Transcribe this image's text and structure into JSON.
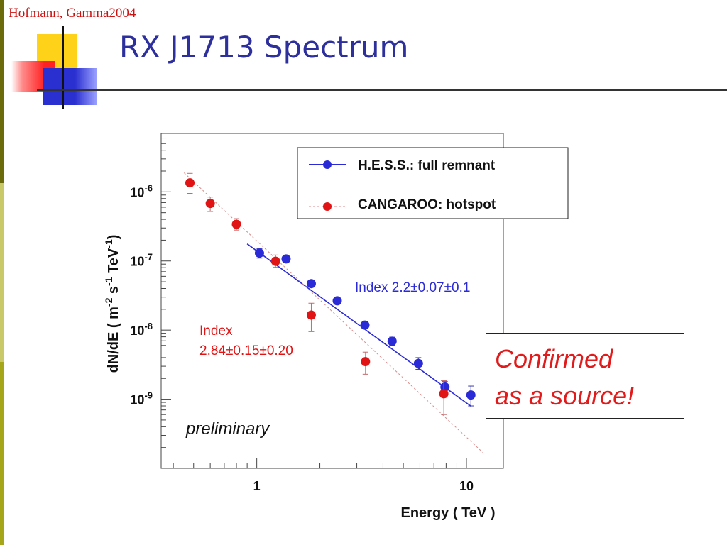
{
  "slide": {
    "credit": "Hofmann, Gamma2004",
    "title": "RX J1713 Spectrum",
    "callout_line1": "Confirmed",
    "callout_line2": "as a source!"
  },
  "chart_data": {
    "type": "scatter",
    "xlabel": "Energy ( TeV )",
    "ylabel_parts": [
      "dN/dE  ( m",
      "-2",
      " s",
      "-1",
      " TeV",
      "-1",
      ")"
    ],
    "xscale": "log",
    "yscale": "log",
    "xlim": [
      0.35,
      15
    ],
    "ylim": [
      1e-10,
      7e-06
    ],
    "x_ticks": [
      {
        "value": 1,
        "label": "1"
      },
      {
        "value": 10,
        "label": "10"
      }
    ],
    "y_ticks": [
      {
        "value": 1e-06,
        "base": "10",
        "exp": "-6"
      },
      {
        "value": 1e-07,
        "base": "10",
        "exp": "-7"
      },
      {
        "value": 1e-08,
        "base": "10",
        "exp": "-8"
      },
      {
        "value": 1e-09,
        "base": "10",
        "exp": "-9"
      }
    ],
    "legend_position": "top-right",
    "series": [
      {
        "name": "H.E.S.S.: full remnant",
        "color": "#2a2ad6",
        "fit_line": "solid",
        "fit_range": [
          0.9,
          10.5
        ],
        "fit_anchor": [
          1.0,
          1.4e-07
        ],
        "index": 2.2,
        "x": [
          1.03,
          1.38,
          1.82,
          2.42,
          3.28,
          4.42,
          5.9,
          7.9,
          10.5
        ],
        "y": [
          1.3e-07,
          1.07e-07,
          4.7e-08,
          2.65e-08,
          1.18e-08,
          6.9e-09,
          3.3e-09,
          1.5e-09,
          1.15e-09
        ],
        "err_lo": [
          1.1e-07,
          9.7e-08,
          4.2e-08,
          2.4e-08,
          1.04e-08,
          6e-09,
          2.7e-09,
          1.17e-09,
          8e-10
        ],
        "err_hi": [
          1.5e-07,
          1.18e-07,
          5.2e-08,
          2.9e-08,
          1.33e-08,
          7.9e-09,
          4e-09,
          1.8e-09,
          1.55e-09
        ]
      },
      {
        "name": "CANGAROO: hotspot",
        "color": "#e01414",
        "fit_line": "dashed",
        "fit_range": [
          0.45,
          12.0
        ],
        "fit_anchor": [
          0.5,
          1.4e-06
        ],
        "index": 2.84,
        "x": [
          0.48,
          0.6,
          0.8,
          1.23,
          1.82,
          3.3,
          7.8
        ],
        "y": [
          1.35e-06,
          6.8e-07,
          3.4e-07,
          9.9e-08,
          1.65e-08,
          3.5e-09,
          1.2e-09
        ],
        "err_lo": [
          9.5e-07,
          5.2e-07,
          2.8e-07,
          8.1e-08,
          9.5e-09,
          2.3e-09,
          6e-10
        ],
        "err_hi": [
          1.85e-06,
          8.4e-07,
          4.1e-07,
          1.22e-07,
          2.45e-08,
          4.8e-09,
          1.85e-09
        ]
      }
    ],
    "annotations": {
      "hess_index": "Index 2.2±0.07±0.1",
      "cangaroo_index_line1": "Index",
      "cangaroo_index_line2": "2.84±0.15±0.20",
      "watermark": "preliminary"
    }
  }
}
